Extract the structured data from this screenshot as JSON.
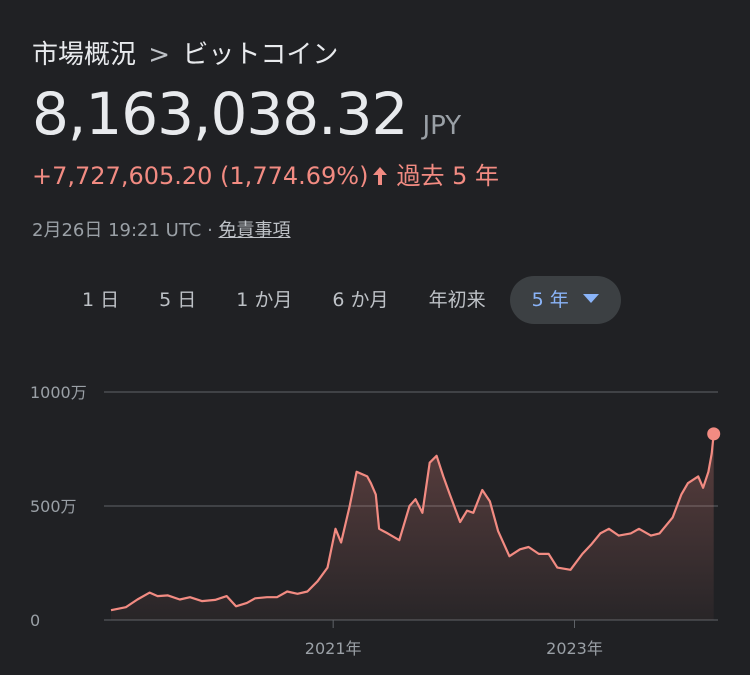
{
  "header": {
    "breadcrumb_root": "市場概況",
    "breadcrumb_sep": ">",
    "breadcrumb_current": "ビットコイン"
  },
  "quote": {
    "price": "8,163,038.32",
    "currency": "JPY",
    "change": "+7,727,605.20 (1,774.69%)",
    "period": "過去 5 年",
    "direction": "up"
  },
  "meta": {
    "timestamp": "2月26日 19:21 UTC ·",
    "disclaimer": "免責事項"
  },
  "tabs": [
    {
      "label": "1 日",
      "active": false
    },
    {
      "label": "5 日",
      "active": false
    },
    {
      "label": "1 か月",
      "active": false
    },
    {
      "label": "6 か月",
      "active": false
    },
    {
      "label": "年初来",
      "active": false
    },
    {
      "label": "5 年",
      "active": true
    }
  ],
  "colors": {
    "background": "#202124",
    "line": "#f28b82",
    "positive": "#f28b82",
    "active_tab_text": "#8ab4f8",
    "gridline": "#5f6368"
  },
  "chart_data": {
    "type": "area",
    "ytick_labels": [
      "1000万",
      "500万",
      "0"
    ],
    "yticks": [
      10000000,
      5000000,
      0
    ],
    "ylim": [
      0,
      10000000
    ],
    "xtick_labels": [
      "2021年",
      "2023年"
    ],
    "xticks": [
      "2021-01-01",
      "2023-01-01"
    ],
    "xlim": [
      "2019-02-26",
      "2024-03-10"
    ],
    "grid": true,
    "series": [
      {
        "x": [
          "2019-03-01",
          "2019-04-15",
          "2019-05-20",
          "2019-06-26",
          "2019-07-20",
          "2019-08-20",
          "2019-09-25",
          "2019-10-26",
          "2019-12-01",
          "2020-01-10",
          "2020-02-14",
          "2020-03-13",
          "2020-04-15",
          "2020-05-10",
          "2020-06-15",
          "2020-07-15",
          "2020-08-15",
          "2020-09-15",
          "2020-10-15",
          "2020-11-15",
          "2020-12-15",
          "2021-01-08",
          "2021-01-25",
          "2021-02-20",
          "2021-03-13",
          "2021-04-14",
          "2021-04-25",
          "2021-05-10",
          "2021-05-20",
          "2021-06-15",
          "2021-07-20",
          "2021-08-20",
          "2021-09-07",
          "2021-09-28",
          "2021-10-20",
          "2021-11-10",
          "2021-11-30",
          "2021-12-20",
          "2022-01-20",
          "2022-02-10",
          "2022-03-01",
          "2022-03-28",
          "2022-04-20",
          "2022-05-15",
          "2022-06-18",
          "2022-07-20",
          "2022-08-15",
          "2022-09-15",
          "2022-10-15",
          "2022-11-10",
          "2022-12-20",
          "2023-01-25",
          "2023-02-20",
          "2023-03-20",
          "2023-04-15",
          "2023-05-15",
          "2023-06-20",
          "2023-07-15",
          "2023-08-20",
          "2023-09-15",
          "2023-10-25",
          "2023-11-20",
          "2023-12-10",
          "2024-01-10",
          "2024-01-25",
          "2024-02-10",
          "2024-02-20",
          "2024-02-26"
        ],
        "values": [
          430000,
          560000,
          900000,
          1200000,
          1050000,
          1080000,
          900000,
          1000000,
          830000,
          880000,
          1050000,
          600000,
          750000,
          950000,
          1000000,
          1000000,
          1250000,
          1150000,
          1250000,
          1700000,
          2300000,
          4000000,
          3400000,
          5000000,
          6500000,
          6300000,
          6000000,
          5500000,
          4000000,
          3800000,
          3500000,
          5000000,
          5300000,
          4700000,
          6900000,
          7200000,
          6300000,
          5500000,
          4300000,
          4800000,
          4700000,
          5700000,
          5200000,
          3900000,
          2800000,
          3100000,
          3200000,
          2900000,
          2900000,
          2300000,
          2200000,
          2900000,
          3300000,
          3800000,
          4000000,
          3700000,
          3800000,
          4000000,
          3700000,
          3800000,
          4500000,
          5500000,
          6000000,
          6300000,
          5800000,
          6500000,
          7300000,
          8163038
        ]
      }
    ]
  }
}
